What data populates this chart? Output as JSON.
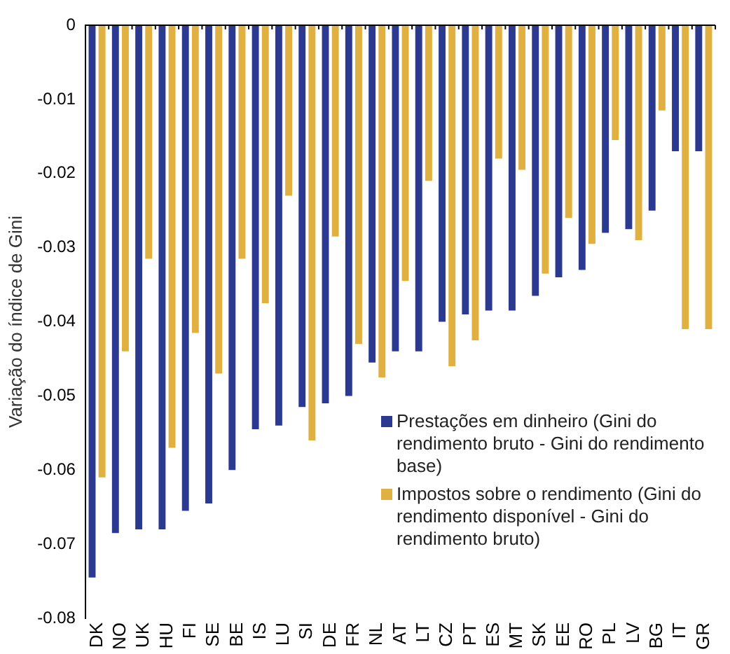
{
  "chart_data": {
    "type": "bar",
    "ylabel": "Variação do índice de Gini",
    "categories": [
      "DK",
      "NO",
      "UK",
      "HU",
      "FI",
      "SE",
      "BE",
      "IS",
      "LU",
      "SI",
      "DE",
      "FR",
      "NL",
      "AT",
      "LT",
      "CZ",
      "PT",
      "ES",
      "MT",
      "SK",
      "EE",
      "RO",
      "PL",
      "LV",
      "BG",
      "IT",
      "GR"
    ],
    "series": [
      {
        "name": "Prestações em dinheiro (Gini do rendimento bruto - Gini do rendimento base)",
        "color": "#2b3990",
        "values": [
          -0.0745,
          -0.0685,
          -0.068,
          -0.068,
          -0.0655,
          -0.0645,
          -0.06,
          -0.0545,
          -0.054,
          -0.0515,
          -0.051,
          -0.05,
          -0.0455,
          -0.044,
          -0.044,
          -0.04,
          -0.039,
          -0.0385,
          -0.0385,
          -0.0365,
          -0.034,
          -0.033,
          -0.028,
          -0.0275,
          -0.025,
          -0.017,
          -0.017
        ]
      },
      {
        "name": "Impostos sobre o rendimento (Gini do rendimento disponível - Gini do rendimento bruto)",
        "color": "#e0b040",
        "values": [
          -0.061,
          -0.044,
          -0.0315,
          -0.057,
          -0.0415,
          -0.047,
          -0.0315,
          -0.0375,
          -0.023,
          -0.056,
          -0.0285,
          -0.043,
          -0.0475,
          -0.0345,
          -0.021,
          -0.046,
          -0.0425,
          -0.018,
          -0.0195,
          -0.0335,
          -0.026,
          -0.0295,
          -0.0155,
          -0.029,
          -0.0115,
          -0.041,
          -0.041
        ]
      }
    ],
    "ylim": [
      -0.08,
      0
    ],
    "yticks": [
      0,
      -0.01,
      -0.02,
      -0.03,
      -0.04,
      -0.05,
      -0.06,
      -0.07,
      -0.08
    ],
    "grid": false,
    "legend": "bottom right"
  }
}
